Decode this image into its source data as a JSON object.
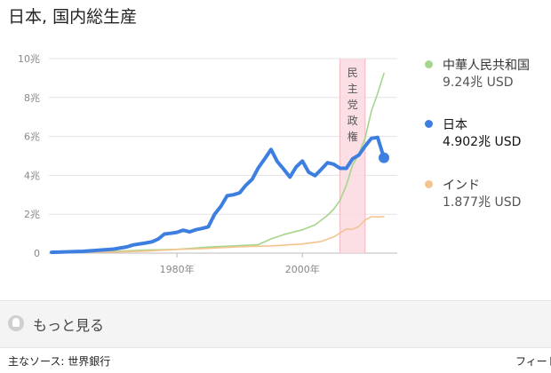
{
  "title": "日本, 国内総生産",
  "chart_data": {
    "type": "line",
    "ylim": [
      0,
      10
    ],
    "xlim": [
      1960,
      2013
    ],
    "yticks": [
      {
        "value": 0,
        "label": "0"
      },
      {
        "value": 2,
        "label": "2兆"
      },
      {
        "value": 4,
        "label": "4兆"
      },
      {
        "value": 6,
        "label": "6兆"
      },
      {
        "value": 8,
        "label": "8兆"
      },
      {
        "value": 10,
        "label": "10兆"
      }
    ],
    "xticks": [
      {
        "value": 1980,
        "label": "1980年"
      },
      {
        "value": 2000,
        "label": "2000年"
      }
    ],
    "annotation": {
      "label": "民主党政権",
      "x_start": 2006,
      "x_end": 2010
    },
    "series": [
      {
        "name": "中華人民共和国",
        "color": "#a5d68b",
        "emphasis": false,
        "points": [
          [
            1960,
            0.06
          ],
          [
            1965,
            0.07
          ],
          [
            1970,
            0.09
          ],
          [
            1975,
            0.16
          ],
          [
            1980,
            0.19
          ],
          [
            1985,
            0.31
          ],
          [
            1990,
            0.39
          ],
          [
            1993,
            0.44
          ],
          [
            1995,
            0.73
          ],
          [
            1997,
            0.95
          ],
          [
            2000,
            1.2
          ],
          [
            2002,
            1.45
          ],
          [
            2004,
            1.94
          ],
          [
            2005,
            2.26
          ],
          [
            2006,
            2.71
          ],
          [
            2007,
            3.49
          ],
          [
            2008,
            4.52
          ],
          [
            2009,
            5.1
          ],
          [
            2010,
            5.9
          ],
          [
            2011,
            7.3
          ],
          [
            2012,
            8.2
          ],
          [
            2013,
            9.24
          ]
        ]
      },
      {
        "name": "インド",
        "color": "#f4c48f",
        "emphasis": false,
        "points": [
          [
            1960,
            0.04
          ],
          [
            1970,
            0.06
          ],
          [
            1975,
            0.1
          ],
          [
            1980,
            0.19
          ],
          [
            1985,
            0.24
          ],
          [
            1990,
            0.33
          ],
          [
            1995,
            0.37
          ],
          [
            2000,
            0.47
          ],
          [
            2003,
            0.6
          ],
          [
            2005,
            0.83
          ],
          [
            2007,
            1.24
          ],
          [
            2008,
            1.22
          ],
          [
            2009,
            1.37
          ],
          [
            2010,
            1.71
          ],
          [
            2011,
            1.87
          ],
          [
            2012,
            1.86
          ],
          [
            2013,
            1.877
          ]
        ]
      },
      {
        "name": "日本",
        "color": "#3d7fe0",
        "emphasis": true,
        "points": [
          [
            1960,
            0.04
          ],
          [
            1965,
            0.09
          ],
          [
            1970,
            0.21
          ],
          [
            1972,
            0.32
          ],
          [
            1973,
            0.42
          ],
          [
            1975,
            0.52
          ],
          [
            1976,
            0.58
          ],
          [
            1977,
            0.72
          ],
          [
            1978,
            0.98
          ],
          [
            1979,
            1.02
          ],
          [
            1980,
            1.07
          ],
          [
            1981,
            1.18
          ],
          [
            1982,
            1.09
          ],
          [
            1983,
            1.2
          ],
          [
            1984,
            1.27
          ],
          [
            1985,
            1.35
          ],
          [
            1986,
            2.0
          ],
          [
            1987,
            2.4
          ],
          [
            1988,
            2.95
          ],
          [
            1989,
            3.0
          ],
          [
            1990,
            3.1
          ],
          [
            1991,
            3.5
          ],
          [
            1992,
            3.8
          ],
          [
            1993,
            4.4
          ],
          [
            1994,
            4.85
          ],
          [
            1995,
            5.33
          ],
          [
            1996,
            4.71
          ],
          [
            1997,
            4.32
          ],
          [
            1998,
            3.91
          ],
          [
            1999,
            4.43
          ],
          [
            2000,
            4.73
          ],
          [
            2001,
            4.16
          ],
          [
            2002,
            3.98
          ],
          [
            2003,
            4.3
          ],
          [
            2004,
            4.65
          ],
          [
            2005,
            4.57
          ],
          [
            2006,
            4.36
          ],
          [
            2007,
            4.36
          ],
          [
            2008,
            4.85
          ],
          [
            2009,
            5.04
          ],
          [
            2010,
            5.5
          ],
          [
            2011,
            5.9
          ],
          [
            2012,
            5.95
          ],
          [
            2013,
            4.902
          ]
        ]
      }
    ]
  },
  "legend": [
    {
      "name": "中華人民共和国",
      "value": "9.24兆 USD",
      "color": "#a5d68b",
      "active": false
    },
    {
      "name": "日本",
      "value": "4.902兆 USD",
      "color": "#3d7fe0",
      "active": true
    },
    {
      "name": "インド",
      "value": "1.877兆 USD",
      "color": "#f4c48f",
      "active": false
    }
  ],
  "more_label": "もっと見る",
  "source_label": "主なソース: 世界銀行",
  "feedback_label": "フィード"
}
